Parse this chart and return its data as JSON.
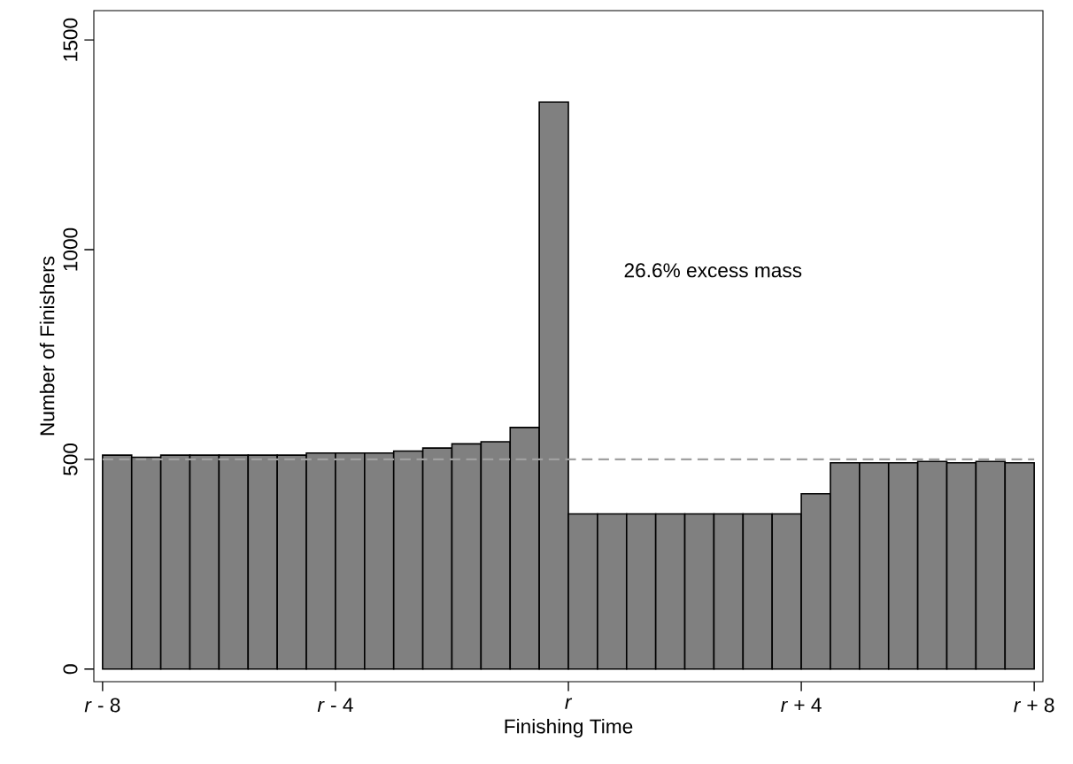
{
  "chart_data": {
    "type": "histogram",
    "xlabel": "Finishing Time",
    "ylabel": "Number of Finishers",
    "bins": [
      -8,
      -7.5,
      -7,
      -6.5,
      -6,
      -5.5,
      -5,
      -4.5,
      -4,
      -3.5,
      -3,
      -2.5,
      -2,
      -1.5,
      -1,
      -0.5,
      0,
      0.5,
      1,
      1.5,
      2,
      2.5,
      3,
      3.5,
      4,
      4.5,
      5,
      5.5,
      6,
      6.5,
      7,
      7.5,
      8
    ],
    "values": [
      510,
      505,
      510,
      510,
      510,
      510,
      510,
      515,
      515,
      515,
      520,
      527,
      537,
      542,
      576,
      1352,
      370,
      370,
      370,
      370,
      370,
      370,
      370,
      370,
      418,
      492,
      492,
      492,
      495,
      492,
      495,
      492
    ],
    "color": "#808080",
    "xlim": [
      -8.15,
      8.15
    ],
    "ylim": [
      -30,
      1570
    ],
    "xticks": [
      {
        "value": -8,
        "label": "*r* - 8"
      },
      {
        "value": -4,
        "label": "*r* - 4"
      },
      {
        "value": 0,
        "label": "*r*"
      },
      {
        "value": 4,
        "label": "*r* + 4"
      },
      {
        "value": 8,
        "label": "*r* + 8"
      }
    ],
    "yticks": [
      0,
      500,
      1000,
      1500
    ],
    "ref_lines": [
      {
        "axis": "y",
        "value": 500,
        "color": "#a0a0a0",
        "line_style": "dashed"
      }
    ],
    "annotations": [
      "26.6% excess mass"
    ]
  }
}
